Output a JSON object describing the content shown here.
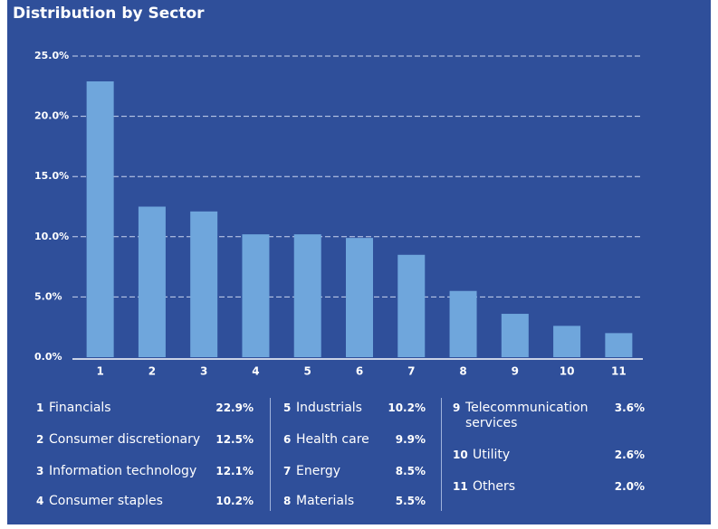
{
  "chart_data": {
    "type": "bar",
    "title": "Distribution by Sector",
    "categories": [
      "1",
      "2",
      "3",
      "4",
      "5",
      "6",
      "7",
      "8",
      "9",
      "10",
      "11"
    ],
    "labels": [
      "Financials",
      "Consumer discretionary",
      "Information technology",
      "Consumer staples",
      "Industrials",
      "Health care",
      "Energy",
      "Materials",
      "Telecommunication services",
      "Utility",
      "Others"
    ],
    "values": [
      22.9,
      12.5,
      12.1,
      10.2,
      10.2,
      9.9,
      8.5,
      5.5,
      3.6,
      2.6,
      2.0
    ],
    "value_labels": [
      "22.9%",
      "12.5%",
      "12.1%",
      "10.2%",
      "10.2%",
      "9.9%",
      "8.5%",
      "5.5%",
      "3.6%",
      "2.6%",
      "2.0%"
    ],
    "color": "#6fa6dc",
    "ylim": [
      0,
      25
    ],
    "yticks": [
      {
        "value": 0,
        "label": "0.0%"
      },
      {
        "value": 5,
        "label": "5.0%"
      },
      {
        "value": 10,
        "label": "10.0%"
      },
      {
        "value": 15,
        "label": "15.0%"
      },
      {
        "value": 20,
        "label": "20.0%"
      },
      {
        "value": 25,
        "label": "25.0%"
      }
    ],
    "grid": true
  }
}
